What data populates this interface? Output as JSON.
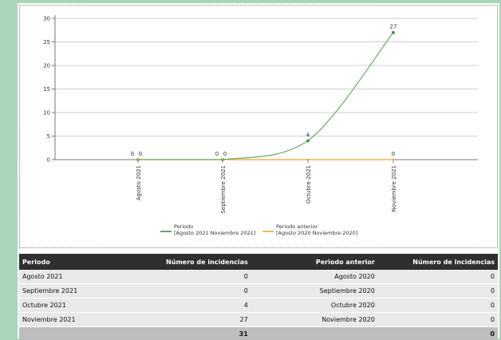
{
  "chart_data": {
    "type": "line",
    "categories": [
      "Agosto 2021",
      "Septiembre 2021",
      "Octubre 2021",
      "Noviembre 2021"
    ],
    "ylim": [
      0,
      30
    ],
    "yticks": [
      0,
      5,
      10,
      15,
      20,
      25,
      30
    ],
    "grid": true,
    "legend_position": "bottom",
    "series": [
      {
        "name": "Periodo\n[Agosto 2021 Noviembre 2021]",
        "values": [
          0,
          0,
          4,
          27
        ],
        "color": "#2e8b2e"
      },
      {
        "name": "Periodo anterior\n[Agosto 2020 Noviembre 2020]",
        "values": [
          0,
          0,
          0,
          0
        ],
        "color": "#f0a020"
      }
    ]
  },
  "table": {
    "headers": [
      "Periodo",
      "Número de incidencias",
      "Periodo anterior",
      "Número de incidencias"
    ],
    "rows": [
      [
        "Agosto 2021",
        "0",
        "Agosto 2020",
        "0"
      ],
      [
        "Septiembre 2021",
        "0",
        "Septiembre 2020",
        "0"
      ],
      [
        "Octubre 2021",
        "4",
        "Octubre 2020",
        "0"
      ],
      [
        "Noviembre 2021",
        "27",
        "Noviembre 2020",
        "0"
      ]
    ],
    "totals": [
      "",
      "31",
      "",
      "0"
    ]
  }
}
